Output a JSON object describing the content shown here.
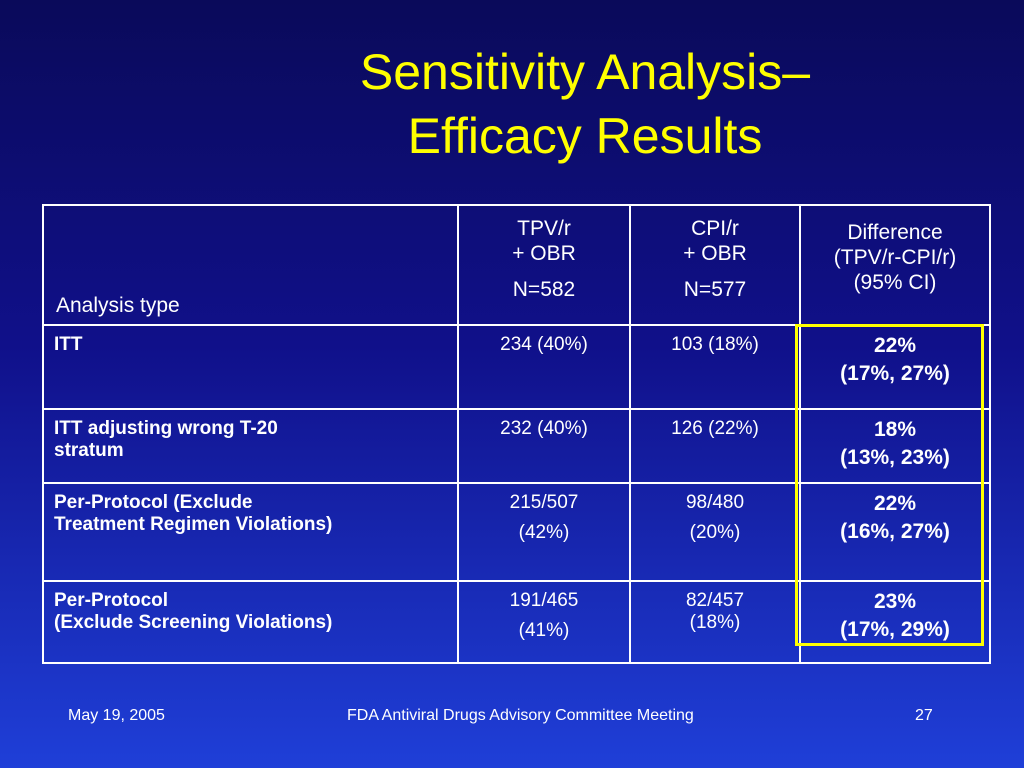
{
  "title": {
    "line1": "Sensitivity Analysis–",
    "line2": "Efficacy Results"
  },
  "table": {
    "header": {
      "analysis_type": "Analysis type",
      "tpv": {
        "line1": "TPV/r",
        "line2": "+ OBR",
        "n": "N=582"
      },
      "cpi": {
        "line1": "CPI/r",
        "line2": "+ OBR",
        "n": "N=577"
      },
      "difference": {
        "line1": "Difference",
        "line2": "(TPV/r-CPI/r)",
        "line3": "(95% CI)"
      }
    },
    "rows": [
      {
        "name_line1": "ITT",
        "name_line2": "",
        "tpv_line1": "234  (40%)",
        "tpv_line2": "",
        "cpi_line1": "103 (18%)",
        "cpi_line2": "",
        "diff_line1": "22%",
        "diff_line2": "(17%, 27%)"
      },
      {
        "name_line1": "ITT adjusting wrong T-20",
        "name_line2": "stratum",
        "tpv_line1": "232 (40%)",
        "tpv_line2": "",
        "cpi_line1": "126 (22%)",
        "cpi_line2": "",
        "diff_line1": "18%",
        "diff_line2": "(13%, 23%)"
      },
      {
        "name_line1": "Per-Protocol (Exclude",
        "name_line2": "Treatment Regimen Violations)",
        "tpv_line1": "215/507",
        "tpv_line2": "(42%)",
        "cpi_line1": "98/480",
        "cpi_line2": "(20%)",
        "diff_line1": "22%",
        "diff_line2": "(16%, 27%)"
      },
      {
        "name_line1": "Per-Protocol",
        "name_line2": "(Exclude Screening Violations)",
        "tpv_line1": "191/465",
        "tpv_line2": "(41%)",
        "cpi_line1": "82/457",
        "cpi_line2": "(18%)",
        "diff_line1": "23%",
        "diff_line2": "(17%, 29%)"
      }
    ]
  },
  "footer": {
    "date": "May 19, 2005",
    "meeting": "FDA Antiviral Drugs Advisory Committee Meeting",
    "page": "27"
  },
  "colors": {
    "background_top": "#0a0a5a",
    "background_bottom": "#1f3fd8",
    "title": "#ffff00",
    "highlight_border": "#ffff00",
    "text": "#ffffff"
  }
}
